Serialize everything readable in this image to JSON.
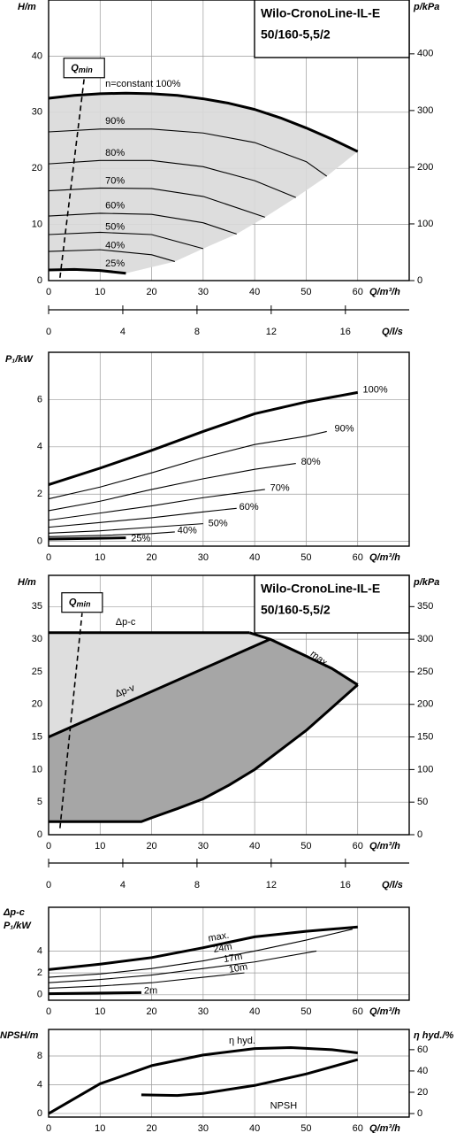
{
  "chart_data": [
    {
      "type": "line",
      "title": "Wilo-CronoLine-IL-E",
      "subtitle": "50/160-5,5/2",
      "xlabel": "Q/m³/h",
      "ylabel": "H/m",
      "y2label": "p/kPa",
      "xlim": [
        0,
        70
      ],
      "xticks": [
        0,
        10,
        20,
        30,
        40,
        50,
        60
      ],
      "ylim": [
        0,
        50
      ],
      "yticks": [
        0,
        10,
        20,
        30,
        40
      ],
      "y2lim": [
        0,
        495
      ],
      "y2ticks": [
        0,
        100,
        200,
        300,
        400
      ],
      "grid": true,
      "area_color": "#d9d9d9",
      "color": "#000000",
      "qmin": {
        "label": "Q",
        "sub": "min",
        "x": [
          2.2,
          6.9
        ],
        "y": [
          0.5,
          36
        ]
      },
      "series": [
        {
          "name": "n=constant 100%",
          "bold": true,
          "x": [
            0,
            5,
            10,
            15,
            20,
            25,
            30,
            35,
            40,
            45,
            50,
            55,
            60
          ],
          "y": [
            32.5,
            33,
            33.3,
            33.4,
            33.3,
            33,
            32.4,
            31.6,
            30.5,
            29,
            27.2,
            25.2,
            23
          ]
        },
        {
          "name": "90%",
          "x": [
            0,
            10,
            20,
            30,
            40,
            50,
            54
          ],
          "y": [
            26.5,
            27,
            27,
            26.3,
            24.6,
            21.2,
            18.6
          ]
        },
        {
          "name": "80%",
          "x": [
            0,
            10,
            20,
            30,
            40,
            48
          ],
          "y": [
            20.8,
            21.4,
            21.4,
            20.3,
            17.8,
            14.8
          ]
        },
        {
          "name": "70%",
          "x": [
            0,
            10,
            20,
            30,
            42
          ],
          "y": [
            16,
            16.5,
            16.4,
            15,
            11.3
          ]
        },
        {
          "name": "60%",
          "x": [
            0,
            10,
            20,
            30,
            36.5
          ],
          "y": [
            11.5,
            12,
            11.8,
            10.3,
            8.3
          ]
        },
        {
          "name": "50%",
          "x": [
            0,
            10,
            20,
            30
          ],
          "y": [
            8.2,
            8.6,
            8.2,
            5.7
          ]
        },
        {
          "name": "40%",
          "x": [
            0,
            10,
            20,
            24.5
          ],
          "y": [
            5.2,
            5.5,
            4.6,
            3.4
          ]
        },
        {
          "name": "25%",
          "bold": true,
          "x": [
            0,
            5,
            10,
            15
          ],
          "y": [
            1.9,
            2,
            1.8,
            1.3
          ]
        }
      ]
    },
    {
      "type": "axis",
      "xlabel": "Q/l/s",
      "xlim": [
        0,
        19.44
      ],
      "xticks": [
        0,
        4,
        8,
        12,
        16
      ]
    },
    {
      "type": "line",
      "xlabel": "Q/m³/h",
      "ylabel": "P₁/kW",
      "xlim": [
        0,
        70
      ],
      "xticks": [
        0,
        10,
        20,
        30,
        40,
        50,
        60
      ],
      "ylim": [
        -0.2,
        8
      ],
      "yticks": [
        0,
        2,
        4,
        6
      ],
      "grid": true,
      "color": "#000000",
      "series": [
        {
          "name": "100%",
          "bold": true,
          "x": [
            0,
            10,
            20,
            30,
            40,
            50,
            60
          ],
          "y": [
            2.4,
            3.1,
            3.85,
            4.65,
            5.4,
            5.9,
            6.3
          ]
        },
        {
          "name": "90%",
          "x": [
            0,
            10,
            20,
            30,
            40,
            50,
            54
          ],
          "y": [
            1.8,
            2.3,
            2.9,
            3.55,
            4.1,
            4.45,
            4.65
          ]
        },
        {
          "name": "80%",
          "x": [
            0,
            10,
            20,
            30,
            40,
            48
          ],
          "y": [
            1.3,
            1.7,
            2.2,
            2.65,
            3.05,
            3.3
          ]
        },
        {
          "name": "70%",
          "x": [
            0,
            10,
            20,
            30,
            42
          ],
          "y": [
            0.9,
            1.2,
            1.5,
            1.85,
            2.2
          ]
        },
        {
          "name": "60%",
          "x": [
            0,
            10,
            20,
            30,
            36.5
          ],
          "y": [
            0.6,
            0.8,
            1.0,
            1.25,
            1.4
          ]
        },
        {
          "name": "50%",
          "x": [
            0,
            10,
            20,
            30
          ],
          "y": [
            0.35,
            0.45,
            0.6,
            0.75
          ]
        },
        {
          "name": "40%",
          "x": [
            0,
            10,
            20,
            24.5
          ],
          "y": [
            0.2,
            0.25,
            0.33,
            0.4
          ]
        },
        {
          "name": "25%",
          "bold": true,
          "x": [
            0,
            15
          ],
          "y": [
            0.1,
            0.15
          ]
        }
      ]
    },
    {
      "type": "line",
      "title": "Wilo-CronoLine-IL-E",
      "subtitle": "50/160-5,5/2",
      "xlabel": "Q/m³/h",
      "ylabel": "H/m",
      "y2label": "p/kPa",
      "xlim": [
        0,
        70
      ],
      "xticks": [
        0,
        10,
        20,
        30,
        40,
        50,
        60
      ],
      "ylim": [
        0,
        39.8
      ],
      "yticks": [
        0,
        5,
        10,
        15,
        20,
        25,
        30,
        35
      ],
      "y2lim": [
        0,
        398
      ],
      "y2ticks": [
        0,
        50,
        100,
        150,
        200,
        250,
        300,
        350
      ],
      "grid": true,
      "area_colors": [
        "#dedede",
        "#a6a6a6"
      ],
      "color": "#000000",
      "qmin": {
        "label": "Q",
        "sub": "min",
        "x": [
          2.2,
          6.5
        ],
        "y": [
          1,
          34
        ]
      },
      "series": [
        {
          "name": "Δp-c",
          "bold": true,
          "x": [
            0,
            39
          ],
          "y": [
            31,
            31
          ]
        },
        {
          "name": "max.",
          "bold": true,
          "x": [
            39,
            43,
            50,
            55,
            60
          ],
          "y": [
            31,
            30,
            27.4,
            25.5,
            23
          ]
        },
        {
          "name": "Δp-v",
          "bold": true,
          "x": [
            0,
            43
          ],
          "y": [
            15,
            30
          ]
        },
        {
          "bold": true,
          "x": [
            0,
            18,
            20,
            25,
            30,
            35,
            40,
            45,
            50,
            55,
            60
          ],
          "y": [
            2,
            2,
            2.6,
            4,
            5.5,
            7.6,
            10,
            13,
            16,
            19.5,
            23
          ]
        }
      ]
    },
    {
      "type": "axis",
      "xlabel": "Q/l/s",
      "xlim": [
        0,
        19.44
      ],
      "xticks": [
        0,
        4,
        8,
        12,
        16
      ]
    },
    {
      "type": "line",
      "xlabel": "Q/m³/h",
      "ylabel": [
        "Δp-c",
        "P₁/kW"
      ],
      "xlim": [
        0,
        70
      ],
      "xticks": [
        0,
        10,
        20,
        30,
        40,
        50,
        60
      ],
      "ylim": [
        -0.5,
        8
      ],
      "yticks": [
        0,
        2,
        4
      ],
      "grid": true,
      "color": "#000000",
      "series": [
        {
          "name": "max.",
          "bold": true,
          "x": [
            0,
            10,
            20,
            30,
            40,
            50,
            60
          ],
          "y": [
            2.3,
            2.8,
            3.4,
            4.3,
            5.3,
            5.8,
            6.2
          ]
        },
        {
          "name": "24m",
          "x": [
            0,
            10,
            20,
            30,
            40,
            50,
            59
          ],
          "y": [
            1.6,
            1.9,
            2.4,
            3.1,
            4.0,
            5.0,
            6.0
          ]
        },
        {
          "name": "17m",
          "x": [
            0,
            10,
            20,
            30,
            40,
            52
          ],
          "y": [
            1.1,
            1.4,
            1.8,
            2.4,
            3.0,
            4.0
          ]
        },
        {
          "name": "10m",
          "x": [
            0,
            10,
            20,
            30,
            38
          ],
          "y": [
            0.6,
            0.8,
            1.1,
            1.6,
            2.0
          ]
        },
        {
          "name": "2m",
          "bold": true,
          "x": [
            0,
            18
          ],
          "y": [
            0.1,
            0.2
          ]
        }
      ]
    },
    {
      "type": "line",
      "xlabel": "Q/m³/h",
      "ylabel": "NPSH/m",
      "y2label": "η hyd./%",
      "xlim": [
        0,
        70
      ],
      "xticks": [
        0,
        10,
        20,
        30,
        40,
        50,
        60
      ],
      "ylim": [
        -0.5,
        11.7
      ],
      "yticks": [
        0,
        4,
        8
      ],
      "y2lim": [
        -3.3,
        79
      ],
      "y2ticks": [
        0,
        20,
        40,
        60
      ],
      "grid": true,
      "color": "#000000",
      "series": [
        {
          "name": "η hyd.",
          "axis": "y2",
          "bold": true,
          "x": [
            0,
            10,
            20,
            30,
            40,
            47,
            55,
            60
          ],
          "y": [
            0,
            28,
            45,
            55,
            61,
            62,
            60,
            57
          ]
        },
        {
          "name": "NPSH",
          "bold": true,
          "x": [
            18,
            25,
            30,
            40,
            50,
            60
          ],
          "y": [
            2.6,
            2.5,
            2.8,
            3.9,
            5.5,
            7.5
          ]
        }
      ]
    }
  ]
}
